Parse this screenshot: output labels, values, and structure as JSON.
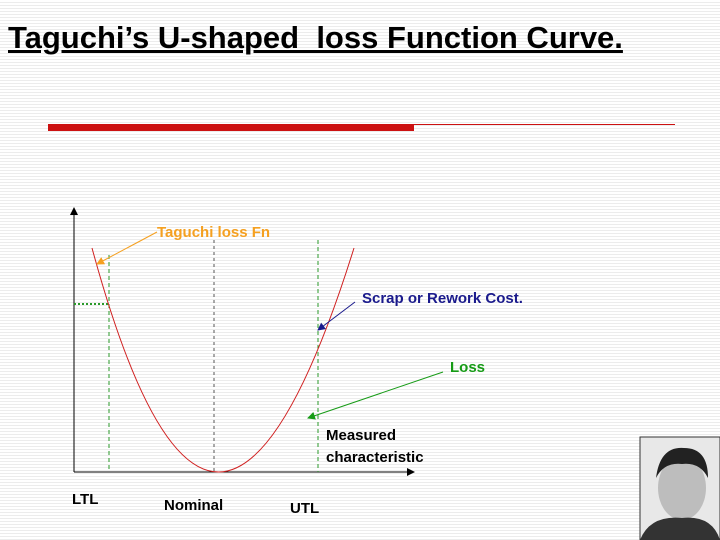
{
  "header": {
    "title": "Taguchi’s U-shaped  loss Function Curve."
  },
  "diagram": {
    "curve_label": "Taguchi loss Fn",
    "cost_label": "Scrap or Rework Cost.",
    "loss_label": "Loss",
    "axis_label": [
      "Measured",
      "characteristic"
    ],
    "limits": {
      "lower": "LTL",
      "nominal": "Nominal",
      "upper": "UTL"
    }
  }
}
